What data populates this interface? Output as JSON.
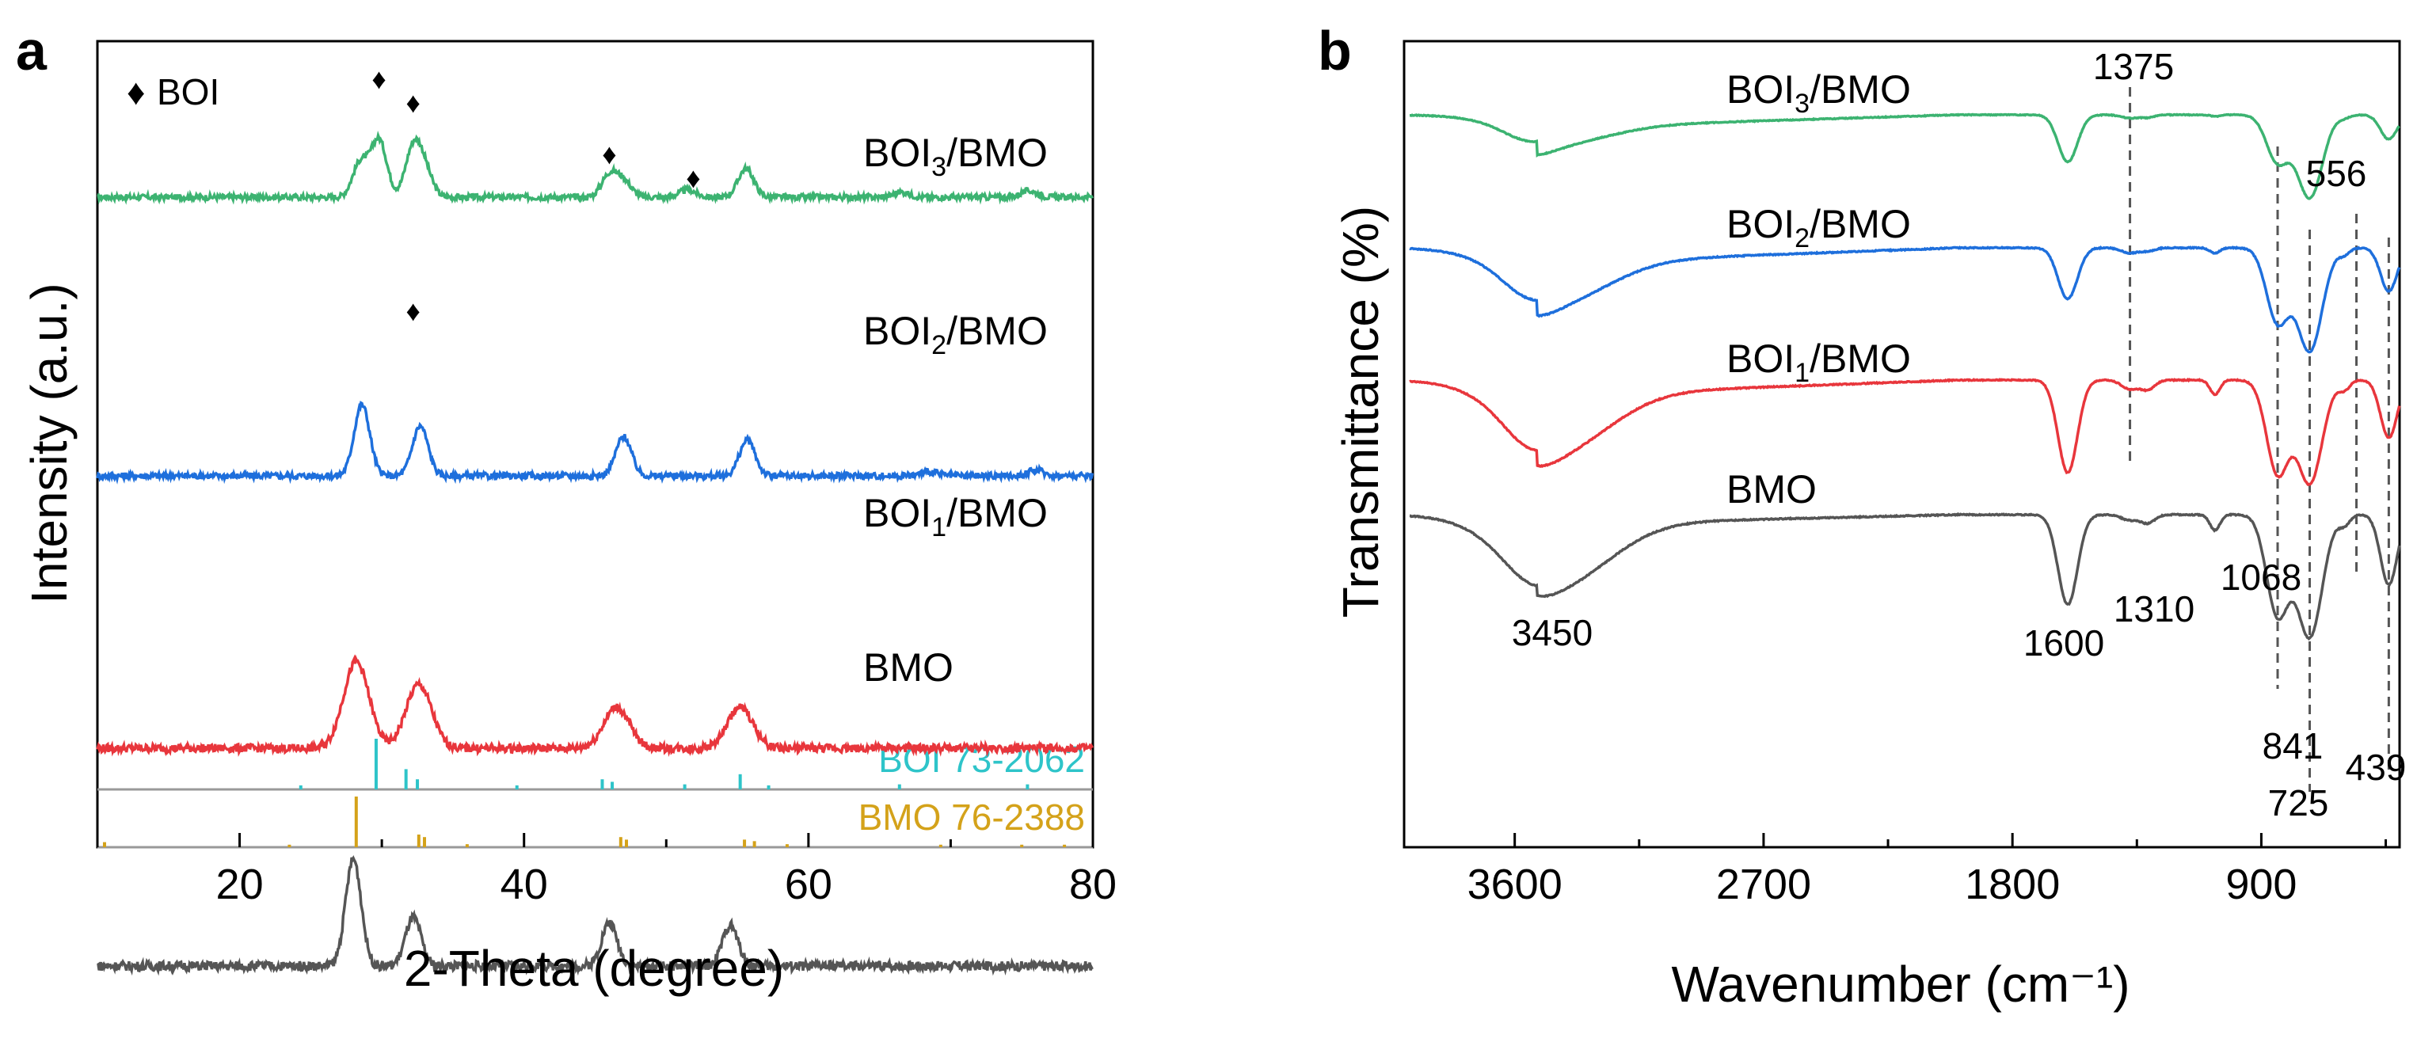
{
  "chart_data": [
    {
      "panel": "a",
      "type": "line",
      "xlabel": "2-Theta (degree)",
      "ylabel": "Intensity (a.u.)",
      "xlim": [
        10,
        80
      ],
      "xticks": [
        20,
        40,
        60,
        80
      ],
      "grid": false,
      "legend": {
        "marker": "♦",
        "label": "BOI",
        "placement": "top-left"
      },
      "series": [
        {
          "name": "BOI3/BMO",
          "label": "BOI",
          "sub": "3",
          "label_end": "/BMO",
          "color": "#3cb371",
          "peaks": [
            [
              28.5,
              0.55
            ],
            [
              29.8,
              0.9
            ],
            [
              32.2,
              0.75
            ],
            [
              33.0,
              0.4
            ],
            [
              46.0,
              0.35
            ],
            [
              47.0,
              0.25
            ],
            [
              51.5,
              0.12
            ],
            [
              55.6,
              0.45
            ],
            [
              66.5,
              0.08
            ],
            [
              75.5,
              0.1
            ]
          ]
        },
        {
          "name": "BOI2/BMO",
          "label": "BOI",
          "sub": "2",
          "label_end": "/BMO",
          "color": "#1e6fdc",
          "peaks": [
            [
              28.6,
              1.0
            ],
            [
              32.7,
              0.7
            ],
            [
              47.0,
              0.55
            ],
            [
              55.7,
              0.5
            ],
            [
              68.5,
              0.06
            ],
            [
              76.0,
              0.08
            ]
          ]
        },
        {
          "name": "BOI1/BMO",
          "label": "BOI",
          "sub": "1",
          "label_end": "/BMO",
          "color": "#e8363c",
          "peaks": [
            [
              28.2,
              0.95
            ],
            [
              32.6,
              0.7
            ],
            [
              46.5,
              0.45
            ],
            [
              55.2,
              0.45
            ]
          ]
        },
        {
          "name": "BMO",
          "label": "BMO",
          "sub": "",
          "label_end": "",
          "color": "#555555",
          "peaks": [
            [
              28.0,
              1.0
            ],
            [
              32.2,
              0.45
            ],
            [
              46.0,
              0.4
            ],
            [
              54.5,
              0.38
            ]
          ]
        }
      ],
      "diamonds": [
        [
          29.8,
          0
        ],
        [
          32.2,
          0
        ],
        [
          46.0,
          0
        ],
        [
          51.9,
          0
        ],
        [
          32.2,
          1
        ]
      ],
      "references": [
        {
          "name": "BOI 73-2062",
          "color": "#2ec4c9",
          "lines": [
            [
              29.6,
              1.0
            ],
            [
              31.7,
              0.4
            ],
            [
              32.5,
              0.2
            ],
            [
              45.5,
              0.2
            ],
            [
              46.2,
              0.15
            ],
            [
              55.2,
              0.3
            ],
            [
              66.4,
              0.1
            ],
            [
              75.4,
              0.1
            ],
            [
              24.3,
              0.08
            ],
            [
              39.5,
              0.08
            ],
            [
              51.3,
              0.1
            ],
            [
              57.2,
              0.08
            ]
          ]
        },
        {
          "name": "BMO 76-2388",
          "color": "#d4a21a",
          "lines": [
            [
              28.2,
              1.0
            ],
            [
              32.6,
              0.25
            ],
            [
              33.0,
              0.2
            ],
            [
              46.8,
              0.2
            ],
            [
              47.2,
              0.15
            ],
            [
              55.5,
              0.15
            ],
            [
              56.2,
              0.12
            ],
            [
              10.5,
              0.1
            ],
            [
              23.5,
              0.05
            ],
            [
              36.0,
              0.06
            ],
            [
              58.5,
              0.06
            ],
            [
              69.3,
              0.05
            ],
            [
              75.0,
              0.05
            ],
            [
              78.0,
              0.05
            ]
          ]
        }
      ]
    },
    {
      "panel": "b",
      "type": "line",
      "xlabel": "Wavenumber (cm⁻¹)",
      "ylabel": "Transmittance (%)",
      "xlim": [
        4000,
        400
      ],
      "xticks": [
        3600,
        2700,
        1800,
        900
      ],
      "grid": false,
      "series": [
        {
          "name": "BOI3/BMO",
          "label": "BOI",
          "sub": "3",
          "label_end": "/BMO",
          "color": "#3cb371"
        },
        {
          "name": "BOI2/BMO",
          "label": "BOI",
          "sub": "2",
          "label_end": "/BMO",
          "color": "#1e6fdc"
        },
        {
          "name": "BOI1/BMO",
          "label": "BOI",
          "sub": "1",
          "label_end": "/BMO",
          "color": "#e8363c"
        },
        {
          "name": "BMO",
          "label": "BMO",
          "sub": "",
          "label_end": "",
          "color": "#555555"
        }
      ],
      "peak_labels": [
        "3450",
        "1600",
        "1310",
        "1068",
        "841",
        "725",
        "439",
        "1375",
        "556"
      ],
      "reference_wavenumbers": [
        1375,
        841,
        725,
        556,
        439
      ]
    }
  ],
  "panel_labels": [
    "a",
    "b"
  ],
  "colors": {
    "axis": "#000000",
    "dash": "#555555"
  }
}
